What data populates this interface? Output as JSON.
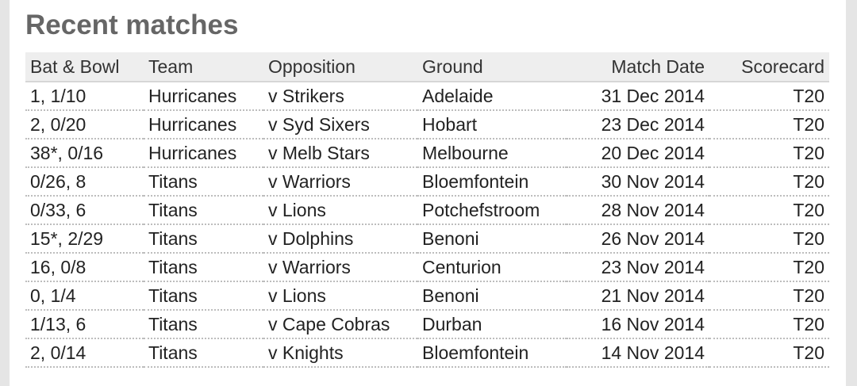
{
  "title": "Recent matches",
  "table": {
    "headers": [
      "Bat & Bowl",
      "Team",
      "Opposition",
      "Ground",
      "Match Date",
      "Scorecard"
    ],
    "rows": [
      [
        "1, 1/10",
        "Hurricanes",
        "v Strikers",
        "Adelaide",
        "31 Dec 2014",
        "T20"
      ],
      [
        "2, 0/20",
        "Hurricanes",
        "v Syd Sixers",
        "Hobart",
        "23 Dec 2014",
        "T20"
      ],
      [
        "38*, 0/16",
        "Hurricanes",
        "v Melb Stars",
        "Melbourne",
        "20 Dec 2014",
        "T20"
      ],
      [
        "0/26, 8",
        "Titans",
        "v Warriors",
        "Bloemfontein",
        "30 Nov 2014",
        "T20"
      ],
      [
        "0/33, 6",
        "Titans",
        "v Lions",
        "Potchefstroom",
        "28 Nov 2014",
        "T20"
      ],
      [
        "15*, 2/29",
        "Titans",
        "v Dolphins",
        "Benoni",
        "26 Nov 2014",
        "T20"
      ],
      [
        "16, 0/8",
        "Titans",
        "v Warriors",
        "Centurion",
        "23 Nov 2014",
        "T20"
      ],
      [
        "0, 1/4",
        "Titans",
        "v Lions",
        "Benoni",
        "21 Nov 2014",
        "T20"
      ],
      [
        "1/13, 6",
        "Titans",
        "v Cape Cobras",
        "Durban",
        "16 Nov 2014",
        "T20"
      ],
      [
        "2, 0/14",
        "Titans",
        "v Knights",
        "Bloemfontein",
        "14 Nov 2014",
        "T20"
      ]
    ]
  }
}
